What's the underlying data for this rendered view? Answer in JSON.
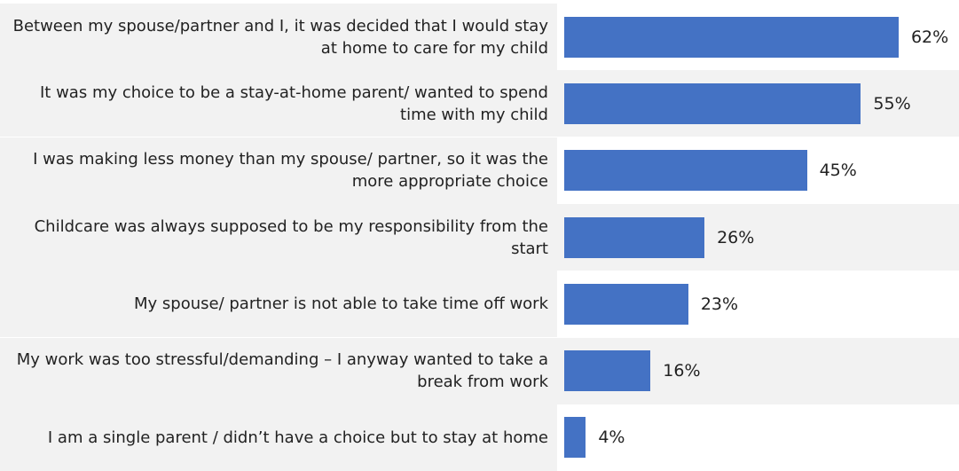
{
  "chart_data": {
    "type": "bar",
    "orientation": "horizontal",
    "color": "#4472c4",
    "categories": [
      "Between my spouse/partner and I, it was decided that I would stay at home to care for my child",
      "It was my choice to be a stay-at-home parent/ wanted to spend time with my child",
      "I was making less money than my spouse/ partner, so it was the more appropriate choice",
      "Childcare was always supposed to be my responsibility from the start",
      "My spouse/ partner is not able to take time off work",
      "My work was too stressful/demanding – I anyway wanted to take a break from work",
      "I am a single parent / didn’t have a choice but to stay at home"
    ],
    "values": [
      62,
      55,
      45,
      26,
      23,
      16,
      4
    ],
    "value_labels": [
      "62%",
      "55%",
      "45%",
      "26%",
      "23%",
      "16%",
      "4%"
    ]
  }
}
